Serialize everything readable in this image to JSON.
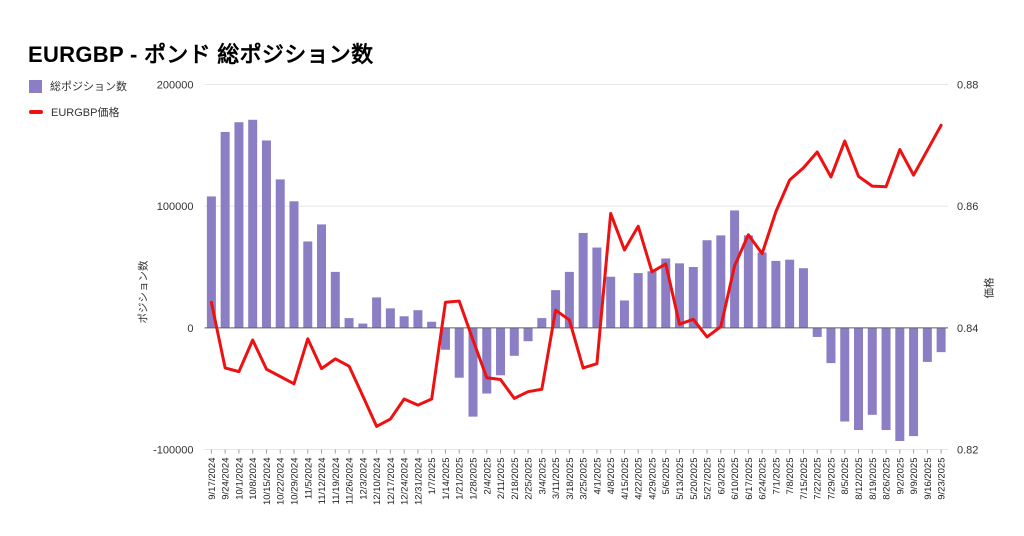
{
  "title": "EURGBP - ポンド 総ポジション数",
  "legend": {
    "items": [
      {
        "label": "総ポジション数",
        "marker": "bar-swatch",
        "color": "#8b7ec5"
      },
      {
        "label": "EURGBP価格",
        "marker": "line-swatch",
        "color": "#ee1111"
      }
    ]
  },
  "chart_data": {
    "type": "bar",
    "subtype": "combo-bar-line",
    "title": "EURGBP - ポンド 総ポジション数",
    "grid": true,
    "legend_position": "top-left",
    "categories": [
      "9/17/2024",
      "9/24/2024",
      "10/1/2024",
      "10/8/2024",
      "10/15/2024",
      "10/22/2024",
      "10/29/2024",
      "11/5/2024",
      "11/12/2024",
      "11/19/2024",
      "11/26/2024",
      "12/3/2024",
      "12/10/2024",
      "12/17/2024",
      "12/24/2024",
      "12/31/2024",
      "1/7/2025",
      "1/14/2025",
      "1/21/2025",
      "1/28/2025",
      "2/4/2025",
      "2/11/2025",
      "2/18/2025",
      "2/25/2025",
      "3/4/2025",
      "3/11/2025",
      "3/18/2025",
      "3/25/2025",
      "4/1/2025",
      "4/8/2025",
      "4/15/2025",
      "4/22/2025",
      "4/29/2025",
      "5/6/2025",
      "5/13/2025",
      "5/20/2025",
      "5/27/2025",
      "6/3/2025",
      "6/10/2025",
      "6/17/2025",
      "6/24/2025",
      "7/1/2025",
      "7/8/2025",
      "7/15/2025",
      "7/22/2025",
      "7/29/2025",
      "8/5/2025",
      "8/12/2025",
      "8/19/2025",
      "8/26/2025",
      "9/2/2025",
      "9/9/2025",
      "9/16/2025",
      "9/23/2025"
    ],
    "series": [
      {
        "name": "総ポジション数",
        "type": "bar",
        "axis": "left",
        "color": "#8b7ec5",
        "values": [
          108000,
          161000,
          169000,
          171000,
          154000,
          122000,
          104000,
          71000,
          85000,
          46000,
          8000,
          3500,
          25000,
          16000,
          9500,
          14500,
          5000,
          -18000,
          -41000,
          -73000,
          -54000,
          -39000,
          -23000,
          -11000,
          8000,
          31000,
          46000,
          78000,
          66000,
          42000,
          22500,
          45000,
          46500,
          57000,
          53000,
          50000,
          72000,
          76000,
          96500,
          76000,
          62000,
          55000,
          56000,
          49000,
          -7500,
          -29000,
          -77000,
          -84000,
          -71500,
          -84000,
          -93000,
          -89000,
          -28000,
          -20000
        ]
      },
      {
        "name": "EURGBP価格",
        "type": "line",
        "axis": "right",
        "color": "#ee1111",
        "values": [
          0.8442,
          0.8334,
          0.8328,
          0.838,
          0.8332,
          0.832,
          0.8308,
          0.8382,
          0.8333,
          0.8349,
          0.8337,
          0.8288,
          0.8238,
          0.825,
          0.8283,
          0.8273,
          0.8283,
          0.8442,
          0.8444,
          0.838,
          0.8318,
          0.8315,
          0.8284,
          0.8295,
          0.8299,
          0.8429,
          0.8413,
          0.8334,
          0.8341,
          0.8588,
          0.8528,
          0.8567,
          0.8492,
          0.8505,
          0.8406,
          0.8414,
          0.8385,
          0.8402,
          0.8502,
          0.8553,
          0.8522,
          0.8591,
          0.8643,
          0.8663,
          0.8689,
          0.8648,
          0.8707,
          0.8649,
          0.8633,
          0.8632,
          0.8693,
          0.8651,
          0.8692,
          0.8733
        ]
      }
    ],
    "left_axis": {
      "title": "ポジション数",
      "range": [
        -100000,
        200000
      ],
      "tick_values": [
        200000,
        100000,
        0,
        -100000
      ],
      "tick_labels": [
        "200000",
        "100000",
        "0",
        "-100000"
      ]
    },
    "right_axis": {
      "title": "価格",
      "range": [
        0.82,
        0.88
      ],
      "tick_values": [
        0.88,
        0.86,
        0.84,
        0.82
      ],
      "tick_labels": [
        "0.88",
        "0.86",
        "0.84",
        "0.82"
      ]
    }
  }
}
